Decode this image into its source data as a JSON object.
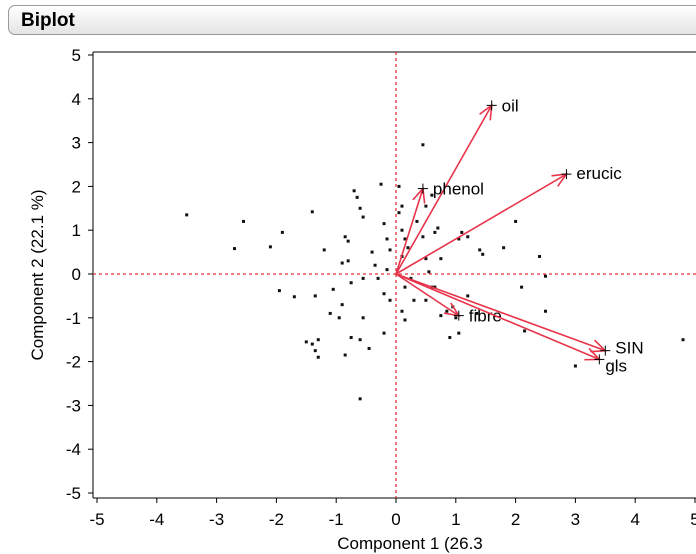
{
  "panel": {
    "title": "Biplot"
  },
  "chart_data": {
    "type": "scatter",
    "title": "",
    "xlabel": "Component 1  (26.3",
    "ylabel": "Component 2  (22.1 %)",
    "xlim": [
      -5,
      5
    ],
    "ylim": [
      -5,
      5
    ],
    "xticks": [
      -5,
      -4,
      -3,
      -2,
      -1,
      0,
      1,
      2,
      3,
      4,
      5
    ],
    "yticks": [
      -5,
      -4,
      -3,
      -2,
      -1,
      0,
      1,
      2,
      3,
      4,
      5
    ],
    "grid": false,
    "reference_lines": {
      "x": 0,
      "y": 0,
      "style": "dotted",
      "color": "#e0303a"
    },
    "points": [
      {
        "x": -3.5,
        "y": 1.35
      },
      {
        "x": -2.55,
        "y": 1.2
      },
      {
        "x": -2.7,
        "y": 0.58
      },
      {
        "x": -2.1,
        "y": 0.62
      },
      {
        "x": -1.9,
        "y": 0.95
      },
      {
        "x": -1.95,
        "y": -0.38
      },
      {
        "x": -1.7,
        "y": -0.52
      },
      {
        "x": -1.4,
        "y": 1.42
      },
      {
        "x": -1.35,
        "y": -0.5
      },
      {
        "x": -1.5,
        "y": -1.55
      },
      {
        "x": -1.4,
        "y": -1.6
      },
      {
        "x": -1.35,
        "y": -1.75
      },
      {
        "x": -1.3,
        "y": -1.9
      },
      {
        "x": -1.3,
        "y": -1.5
      },
      {
        "x": -1.2,
        "y": 0.55
      },
      {
        "x": -1.1,
        "y": -0.9
      },
      {
        "x": -1.05,
        "y": -0.35
      },
      {
        "x": -0.95,
        "y": -1.0
      },
      {
        "x": -0.9,
        "y": -0.7
      },
      {
        "x": -0.85,
        "y": -1.85
      },
      {
        "x": -0.9,
        "y": 0.25
      },
      {
        "x": -0.85,
        "y": 0.85
      },
      {
        "x": -0.8,
        "y": 0.75
      },
      {
        "x": -0.8,
        "y": 0.3
      },
      {
        "x": -0.75,
        "y": -0.2
      },
      {
        "x": -0.75,
        "y": -1.45
      },
      {
        "x": -0.7,
        "y": 1.9
      },
      {
        "x": -0.65,
        "y": 1.75
      },
      {
        "x": -0.6,
        "y": 1.5
      },
      {
        "x": -0.55,
        "y": 1.3
      },
      {
        "x": -0.55,
        "y": -0.1
      },
      {
        "x": -0.55,
        "y": -1.0
      },
      {
        "x": -0.6,
        "y": -1.5
      },
      {
        "x": -0.45,
        "y": -1.7
      },
      {
        "x": -0.6,
        "y": -2.85
      },
      {
        "x": -0.4,
        "y": 0.5
      },
      {
        "x": -0.35,
        "y": 0.2
      },
      {
        "x": -0.3,
        "y": -0.1
      },
      {
        "x": -0.25,
        "y": 2.05
      },
      {
        "x": -0.2,
        "y": 1.15
      },
      {
        "x": -0.15,
        "y": 0.8
      },
      {
        "x": -0.1,
        "y": 0.55
      },
      {
        "x": -0.15,
        "y": 0.1
      },
      {
        "x": -0.2,
        "y": -0.45
      },
      {
        "x": -0.1,
        "y": -0.6
      },
      {
        "x": -0.2,
        "y": -1.35
      },
      {
        "x": 0.05,
        "y": 2.0
      },
      {
        "x": 0.1,
        "y": 1.55
      },
      {
        "x": 0.05,
        "y": 1.4
      },
      {
        "x": 0.1,
        "y": 1.0
      },
      {
        "x": 0.15,
        "y": 0.8
      },
      {
        "x": 0.2,
        "y": 0.6
      },
      {
        "x": 0.1,
        "y": 0.4
      },
      {
        "x": 0.25,
        "y": -0.1
      },
      {
        "x": 0.15,
        "y": -0.3
      },
      {
        "x": 0.1,
        "y": -0.85
      },
      {
        "x": 0.15,
        "y": -1.05
      },
      {
        "x": 0.3,
        "y": -0.6
      },
      {
        "x": 0.35,
        "y": 1.2
      },
      {
        "x": 0.45,
        "y": 0.85
      },
      {
        "x": 0.5,
        "y": 0.35
      },
      {
        "x": 0.55,
        "y": 0.05
      },
      {
        "x": 0.5,
        "y": -0.6
      },
      {
        "x": 0.6,
        "y": -0.3
      },
      {
        "x": 0.5,
        "y": 1.55
      },
      {
        "x": 0.6,
        "y": 1.8
      },
      {
        "x": 0.65,
        "y": 0.95
      },
      {
        "x": 0.7,
        "y": 1.05
      },
      {
        "x": 0.75,
        "y": 0.35
      },
      {
        "x": 0.65,
        "y": -0.3
      },
      {
        "x": 0.75,
        "y": -0.95
      },
      {
        "x": 0.85,
        "y": -0.85
      },
      {
        "x": 0.9,
        "y": -1.45
      },
      {
        "x": 0.95,
        "y": -0.75
      },
      {
        "x": 1.0,
        "y": -1.0
      },
      {
        "x": 1.05,
        "y": 0.8
      },
      {
        "x": 1.1,
        "y": 0.95
      },
      {
        "x": 1.2,
        "y": 0.85
      },
      {
        "x": 1.2,
        "y": -0.5
      },
      {
        "x": 1.05,
        "y": -1.35
      },
      {
        "x": 0.45,
        "y": 2.95
      },
      {
        "x": 1.4,
        "y": 0.55
      },
      {
        "x": 1.45,
        "y": 0.45
      },
      {
        "x": 1.35,
        "y": -0.9
      },
      {
        "x": 1.8,
        "y": 0.6
      },
      {
        "x": 2.0,
        "y": 1.2
      },
      {
        "x": 2.1,
        "y": -0.3
      },
      {
        "x": 2.15,
        "y": -1.3
      },
      {
        "x": 2.4,
        "y": 0.4
      },
      {
        "x": 2.5,
        "y": -0.05
      },
      {
        "x": 2.5,
        "y": -0.85
      },
      {
        "x": 3.0,
        "y": -2.1
      },
      {
        "x": 4.8,
        "y": -1.5
      }
    ],
    "loadings": [
      {
        "name": "oil",
        "x": 1.6,
        "y": 3.85
      },
      {
        "name": "erucic",
        "x": 2.85,
        "y": 2.28
      },
      {
        "name": "phenol",
        "x": 0.45,
        "y": 1.95
      },
      {
        "name": "fibre",
        "x": 1.05,
        "y": -0.95
      },
      {
        "name": "SIN",
        "x": 3.5,
        "y": -1.75
      },
      {
        "name": "gls",
        "x": 3.4,
        "y": -1.95
      }
    ],
    "loading_color": "#e8344a"
  }
}
